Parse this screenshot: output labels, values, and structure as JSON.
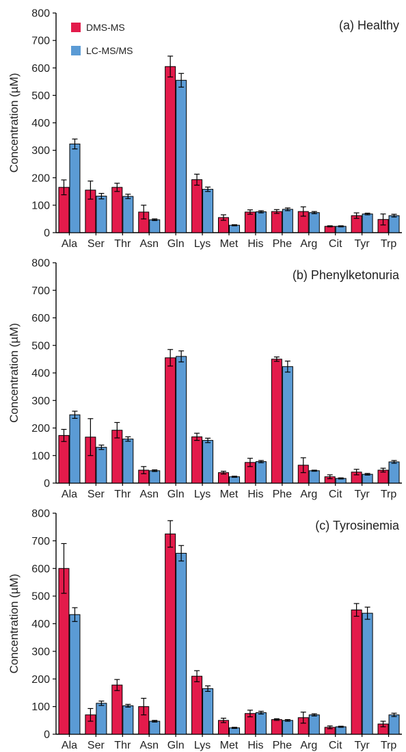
{
  "legend": [
    {
      "label": "DMS-MS",
      "color": "#e31b4b"
    },
    {
      "label": "LC-MS/MS",
      "color": "#5b9bd5"
    }
  ],
  "chart_data": [
    {
      "type": "bar",
      "title": "(a) Healthy",
      "ylabel": "Concentration (µM)",
      "ylim": [
        0,
        800
      ],
      "yticks": [
        0,
        100,
        200,
        300,
        400,
        500,
        600,
        700,
        800
      ],
      "categories": [
        "Ala",
        "Ser",
        "Thr",
        "Asn",
        "Gln",
        "Lys",
        "Met",
        "His",
        "Phe",
        "Arg",
        "Cit",
        "Tyr",
        "Trp"
      ],
      "series": [
        {
          "name": "DMS-MS",
          "values": [
            165,
            155,
            165,
            75,
            605,
            193,
            55,
            75,
            77,
            77,
            23,
            62,
            48
          ],
          "errors": [
            27,
            33,
            15,
            25,
            38,
            20,
            10,
            8,
            7,
            17,
            2,
            10,
            20
          ]
        },
        {
          "name": "LC-MS/MS",
          "values": [
            323,
            133,
            132,
            47,
            555,
            158,
            27,
            76,
            85,
            73,
            23,
            68,
            62
          ],
          "errors": [
            18,
            10,
            8,
            3,
            25,
            8,
            2,
            4,
            5,
            4,
            2,
            3,
            5
          ]
        }
      ]
    },
    {
      "type": "bar",
      "title": "(b) Phenylketonuria",
      "ylabel": "Concentration (µM)",
      "ylim": [
        0,
        800
      ],
      "yticks": [
        0,
        100,
        200,
        300,
        400,
        500,
        600,
        700,
        800
      ],
      "categories": [
        "Ala",
        "Ser",
        "Thr",
        "Asn",
        "Gln",
        "Lys",
        "Met",
        "His",
        "Phe",
        "Arg",
        "Cit",
        "Tyr",
        "Trp"
      ],
      "series": [
        {
          "name": "DMS-MS",
          "values": [
            173,
            167,
            192,
            47,
            455,
            168,
            38,
            75,
            450,
            65,
            23,
            40,
            47
          ],
          "errors": [
            22,
            67,
            28,
            13,
            30,
            13,
            5,
            15,
            8,
            27,
            7,
            10,
            7
          ]
        },
        {
          "name": "LC-MS/MS",
          "values": [
            248,
            130,
            160,
            45,
            460,
            155,
            23,
            78,
            423,
            45,
            17,
            32,
            77
          ],
          "errors": [
            13,
            8,
            8,
            3,
            20,
            8,
            2,
            4,
            20,
            2,
            2,
            3,
            5
          ]
        }
      ]
    },
    {
      "type": "bar",
      "title": "(c) Tyrosinemia",
      "ylabel": "Concentration (µM)",
      "ylim": [
        0,
        800
      ],
      "yticks": [
        0,
        100,
        200,
        300,
        400,
        500,
        600,
        700,
        800
      ],
      "categories": [
        "Ala",
        "Ser",
        "Thr",
        "Asn",
        "Gln",
        "Lys",
        "Met",
        "His",
        "Phe",
        "Arg",
        "Cit",
        "Tyr",
        "Trp"
      ],
      "series": [
        {
          "name": "DMS-MS",
          "values": [
            600,
            70,
            178,
            100,
            725,
            210,
            50,
            75,
            53,
            60,
            25,
            450,
            37
          ],
          "errors": [
            90,
            23,
            20,
            30,
            48,
            20,
            8,
            12,
            3,
            20,
            5,
            23,
            10
          ]
        },
        {
          "name": "LC-MS/MS",
          "values": [
            433,
            112,
            103,
            47,
            655,
            165,
            23,
            78,
            50,
            70,
            27,
            438,
            70
          ],
          "errors": [
            25,
            8,
            5,
            3,
            28,
            10,
            2,
            5,
            3,
            4,
            2,
            22,
            6
          ]
        }
      ]
    }
  ]
}
